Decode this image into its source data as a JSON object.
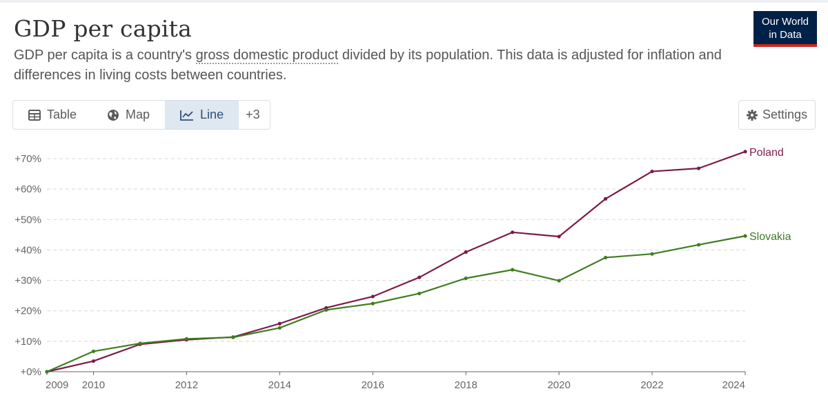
{
  "header": {
    "title": "GDP per capita",
    "subtitle_pre": "GDP per capita is a country's ",
    "subtitle_link": "gross domestic product",
    "subtitle_post": " divided by its population. This data is adjusted for inflation and differences in living costs between countries.",
    "logo_line1": "Our World",
    "logo_line2": "in Data"
  },
  "tabs": [
    {
      "label": "Table",
      "icon": "table-icon"
    },
    {
      "label": "Map",
      "icon": "globe-icon"
    },
    {
      "label": "Line",
      "icon": "line-chart-icon",
      "active": true
    },
    {
      "label": "+3"
    }
  ],
  "settings_label": "Settings",
  "colors": {
    "Poland": "#7b1b48",
    "Slovakia": "#3f7d20",
    "grid": "#d8d8d8",
    "axis": "#666666"
  },
  "chart_data": {
    "type": "line",
    "title": "GDP per capita",
    "x": [
      2009,
      2010,
      2011,
      2012,
      2013,
      2014,
      2015,
      2016,
      2017,
      2018,
      2019,
      2020,
      2021,
      2022,
      2023,
      2024
    ],
    "xticks": [
      "2009",
      "2010",
      "2012",
      "2014",
      "2016",
      "2018",
      "2020",
      "2022",
      "2024"
    ],
    "yticks": [
      "+0%",
      "+10%",
      "+20%",
      "+30%",
      "+40%",
      "+50%",
      "+60%",
      "+70%"
    ],
    "ylim": [
      0,
      70
    ],
    "xlim": [
      2009,
      2024
    ],
    "grid": true,
    "legend": "line-end labels",
    "series": [
      {
        "name": "Poland",
        "values": [
          0,
          3.5,
          9.0,
          10.5,
          11.4,
          15.8,
          21.0,
          24.7,
          31.0,
          39.3,
          45.8,
          44.4,
          56.8,
          65.8,
          66.8,
          72.3
        ]
      },
      {
        "name": "Slovakia",
        "values": [
          0,
          6.7,
          9.3,
          10.8,
          11.3,
          14.4,
          20.3,
          22.4,
          25.7,
          30.7,
          33.5,
          29.9,
          37.5,
          38.7,
          41.7,
          44.6
        ]
      }
    ]
  }
}
